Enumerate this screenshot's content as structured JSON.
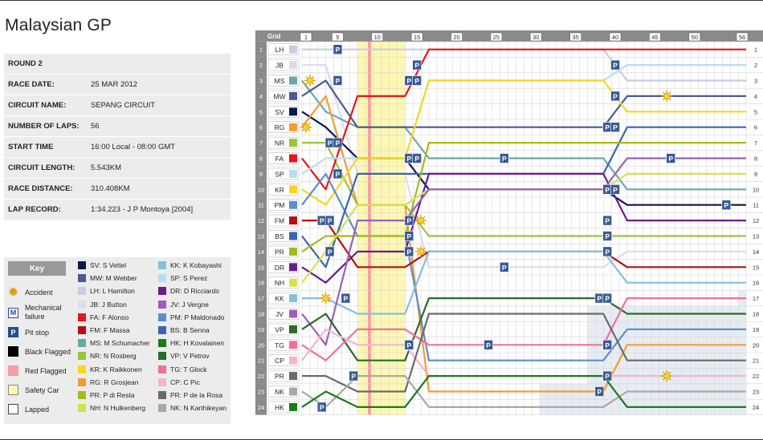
{
  "title": "Malaysian GP",
  "info": [
    {
      "label": "ROUND 2",
      "value": ""
    },
    {
      "label": "RACE DATE:",
      "value": "25 MAR 2012"
    },
    {
      "label": "CIRCUIT NAME:",
      "value": "SEPANG CIRCUIT"
    },
    {
      "label": "NUMBER OF LAPS:",
      "value": "56"
    },
    {
      "label": "START TIME",
      "value": "16:00 Local - 08:00 GMT"
    },
    {
      "label": "CIRCUIT LENGTH:",
      "value": "5.543KM"
    },
    {
      "label": "RACE DISTANCE:",
      "value": "310.408KM"
    },
    {
      "label": "LAP RECORD:",
      "value": "1:34.223 - J P Montoya [2004]"
    }
  ],
  "key": {
    "title": "Key",
    "symbols": [
      {
        "label": "Accident",
        "icon": "sun-icon",
        "glyph": "",
        "bg": "#ececec",
        "fg": "#e0a000"
      },
      {
        "label": "Mechanical failure",
        "icon": "mechanical-icon",
        "glyph": "M",
        "bg": "#fff",
        "fg": "#2a4c8c"
      },
      {
        "label": "Pit stop",
        "icon": "pit-icon",
        "glyph": "P",
        "bg": "#2a4c8c",
        "fg": "#fff"
      },
      {
        "label": "Black Flagged",
        "icon": "black-flag-icon",
        "glyph": "",
        "bg": "#000",
        "fg": "#fff"
      },
      {
        "label": "Red Flagged",
        "icon": "red-flag-icon",
        "glyph": "",
        "bg": "#f4a0a0",
        "fg": "#fff"
      },
      {
        "label": "Safety Car",
        "icon": "safety-car-icon",
        "glyph": "",
        "bg": "#fdf7b4",
        "fg": "#fff"
      },
      {
        "label": "Lapped",
        "icon": "lapped-icon",
        "glyph": "",
        "bg": "#fff",
        "fg": "#fff"
      }
    ]
  },
  "chart_data": {
    "type": "line",
    "header": "Grid",
    "lap_ticks": [
      1,
      5,
      10,
      15,
      20,
      25,
      30,
      35,
      40,
      45,
      50,
      56
    ],
    "xlim": [
      0,
      56
    ],
    "positions": [
      1,
      2,
      3,
      4,
      5,
      6,
      7,
      8,
      9,
      10,
      11,
      12,
      13,
      14,
      15,
      16,
      17,
      18,
      19,
      20,
      21,
      22,
      23,
      24
    ],
    "safety_car_laps": [
      8,
      13
    ],
    "red_flag_lap": 9,
    "series": [
      {
        "code": "LH",
        "name": "LH: L Hamilton",
        "color": "#c8cbe4",
        "grid": 1,
        "final": 3
      },
      {
        "code": "JB",
        "name": "JB: J Button",
        "color": "#dcdcec",
        "grid": 2,
        "final": 14
      },
      {
        "code": "MS",
        "name": "MS: M Schumacher",
        "color": "#6aa8a8",
        "grid": 3,
        "final": 10
      },
      {
        "code": "MW",
        "name": "MW: M Webber",
        "color": "#4a5a90",
        "grid": 4,
        "final": 4
      },
      {
        "code": "SV",
        "name": "SV: S Vettel",
        "color": "#0b1a4e",
        "grid": 5,
        "final": 11
      },
      {
        "code": "RG",
        "name": "RG: R Grosjean",
        "color": "#f39c34",
        "grid": 6,
        "final": 20
      },
      {
        "code": "NR",
        "name": "NR: N Rosberg",
        "color": "#9ac43c",
        "grid": 7,
        "final": 13
      },
      {
        "code": "FA",
        "name": "FA: F Alonso",
        "color": "#e3161c",
        "grid": 8,
        "final": 1
      },
      {
        "code": "SP",
        "name": "SP: S Perez",
        "color": "#b8dcf0",
        "grid": 9,
        "final": 2
      },
      {
        "code": "KR",
        "name": "KR: K Raikkonen",
        "color": "#f4d81c",
        "grid": 10,
        "final": 5
      },
      {
        "code": "PM",
        "name": "PM: P Maldonado",
        "color": "#5b8fcb",
        "grid": 11,
        "final": 19
      },
      {
        "code": "FM",
        "name": "FM: F Massa",
        "color": "#b01010",
        "grid": 12,
        "final": 15
      },
      {
        "code": "BS",
        "name": "BS: B Senna",
        "color": "#3a64b0",
        "grid": 13,
        "final": 6
      },
      {
        "code": "PR",
        "name": "PR: P di Resta",
        "color": "#a6ba1c",
        "grid": 14,
        "final": 7
      },
      {
        "code": "DR",
        "name": "DR: D Ricciardo",
        "color": "#6a1c8c",
        "grid": 15,
        "final": 12
      },
      {
        "code": "NH",
        "name": "NH: N Hulkenberg",
        "color": "#d4e24c",
        "grid": 16,
        "final": 9
      },
      {
        "code": "KK",
        "name": "KK: K Kobayashi",
        "color": "#84c0dc",
        "grid": 17,
        "final": 16
      },
      {
        "code": "JV",
        "name": "JV: J Vergne",
        "color": "#9a60b8",
        "grid": 18,
        "final": 8
      },
      {
        "code": "VP",
        "name": "VP: V Petrov",
        "color": "#2a6a2a",
        "grid": 19,
        "final": 18
      },
      {
        "code": "TG",
        "name": "TG: T Glock",
        "color": "#f07098",
        "grid": 20,
        "final": 17
      },
      {
        "code": "CP",
        "name": "CP: C Pic",
        "color": "#f4b4cc",
        "grid": 21,
        "final": 22
      },
      {
        "code": "PR",
        "name": "PR: P de la Rosa",
        "color": "#6a6a6a",
        "grid": 22,
        "final": 21
      },
      {
        "code": "NK",
        "name": "NK: N Karthikeyan",
        "color": "#a8a8a8",
        "grid": 23,
        "final": 23
      },
      {
        "code": "HK",
        "name": "HK: H Kovalainen",
        "color": "#1a7a1a",
        "grid": 24,
        "final": 24
      }
    ],
    "pit_stops": [
      {
        "lap": 5,
        "pos": 1
      },
      {
        "lap": 5,
        "pos": 3
      },
      {
        "lap": 5,
        "pos": 9
      },
      {
        "lap": 4,
        "pos": 7
      },
      {
        "lap": 5,
        "pos": 7
      },
      {
        "lap": 3,
        "pos": 12
      },
      {
        "lap": 4,
        "pos": 12
      },
      {
        "lap": 15,
        "pos": 2
      },
      {
        "lap": 14,
        "pos": 3
      },
      {
        "lap": 15,
        "pos": 3
      },
      {
        "lap": 14,
        "pos": 8
      },
      {
        "lap": 15,
        "pos": 8
      },
      {
        "lap": 14,
        "pos": 12
      },
      {
        "lap": 14,
        "pos": 13
      },
      {
        "lap": 14,
        "pos": 14
      },
      {
        "lap": 40,
        "pos": 2
      },
      {
        "lap": 40,
        "pos": 4
      },
      {
        "lap": 39,
        "pos": 6
      },
      {
        "lap": 40,
        "pos": 6
      },
      {
        "lap": 39,
        "pos": 10
      },
      {
        "lap": 40,
        "pos": 10
      },
      {
        "lap": 39,
        "pos": 12
      },
      {
        "lap": 39,
        "pos": 13
      },
      {
        "lap": 39,
        "pos": 14
      },
      {
        "lap": 38,
        "pos": 17
      },
      {
        "lap": 39,
        "pos": 17
      },
      {
        "lap": 39,
        "pos": 20
      },
      {
        "lap": 39,
        "pos": 22
      },
      {
        "lap": 38,
        "pos": 23
      },
      {
        "lap": 47,
        "pos": 8
      },
      {
        "lap": 54,
        "pos": 11
      },
      {
        "lap": 26,
        "pos": 8
      },
      {
        "lap": 26,
        "pos": 15
      },
      {
        "lap": 24,
        "pos": 20
      },
      {
        "lap": 4,
        "pos": 14
      },
      {
        "lap": 6,
        "pos": 17
      },
      {
        "lap": 3,
        "pos": 24
      },
      {
        "lap": 7,
        "pos": 22
      },
      {
        "lap": 14,
        "pos": 20
      }
    ],
    "accidents": [
      {
        "lap": 1,
        "pos": 3
      },
      {
        "lap": 0.5,
        "pos": 6
      },
      {
        "lap": 15,
        "pos": 12
      },
      {
        "lap": 15,
        "pos": 14
      },
      {
        "lap": 46,
        "pos": 4
      },
      {
        "lap": 46,
        "pos": 22
      },
      {
        "lap": 3,
        "pos": 17
      }
    ]
  }
}
